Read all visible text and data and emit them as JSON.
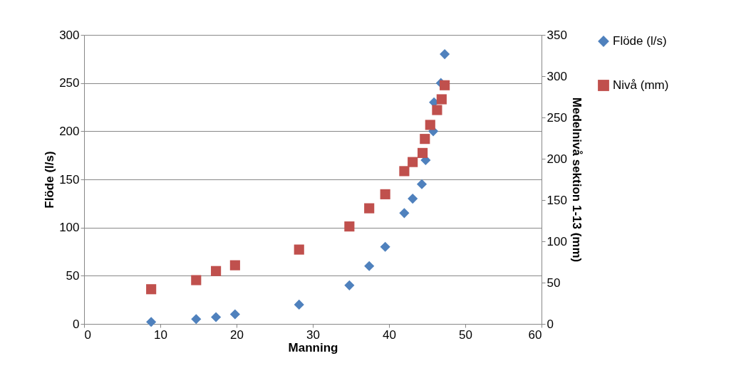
{
  "chart_data": {
    "type": "scatter",
    "xlabel": "Manning",
    "ylabel": "Flöde (l/s)",
    "y2label": "Medelnivå sektion 1-13 (mm)",
    "xlim": [
      0,
      60
    ],
    "xticks": [
      0,
      10,
      20,
      30,
      40,
      50,
      60
    ],
    "ylim": [
      0,
      300
    ],
    "yticks": [
      0,
      50,
      100,
      150,
      200,
      250,
      300
    ],
    "y2lim": [
      0,
      350
    ],
    "y2ticks": [
      0,
      50,
      100,
      150,
      200,
      250,
      300,
      350
    ],
    "grid": "y",
    "legend": "right",
    "series": [
      {
        "name": "Flöde (l/s)",
        "color": "#4f81bd",
        "marker": "diamond",
        "x": [
          8.8,
          14.7,
          17.3,
          19.8,
          28.2,
          34.8,
          37.4,
          39.5,
          42.0,
          43.1,
          44.3,
          44.8,
          45.8,
          45.9,
          46.8,
          47.3
        ],
        "values": [
          2,
          5,
          7,
          10,
          20,
          40,
          60,
          80,
          115,
          130,
          145,
          170,
          200,
          230,
          250,
          280
        ]
      },
      {
        "name": "Nivå (mm)",
        "color": "#c0504d",
        "marker": "square",
        "axis": "y2",
        "x": [
          8.8,
          14.7,
          17.3,
          19.8,
          28.2,
          34.8,
          37.4,
          39.5,
          42.0,
          43.1,
          44.4,
          44.7,
          45.4,
          46.3,
          46.9,
          47.3
        ],
        "values": [
          42,
          53,
          64,
          71,
          90,
          118,
          140,
          157,
          185,
          196,
          207,
          224,
          241,
          259,
          272,
          289
        ]
      }
    ]
  }
}
